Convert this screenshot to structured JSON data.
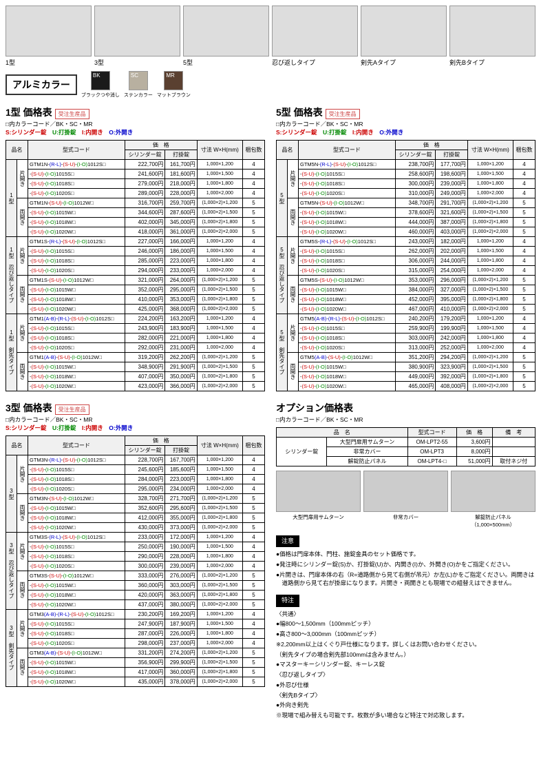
{
  "topImages": {
    "fences": [
      {
        "label": "1型"
      },
      {
        "label": "3型"
      },
      {
        "label": "5型"
      }
    ],
    "spikes": [
      {
        "label": "忍び返しタイプ"
      },
      {
        "label": "剣先Aタイプ"
      },
      {
        "label": "剣先Bタイプ"
      }
    ]
  },
  "colorSection": {
    "title": "アルミカラー",
    "swatches": [
      {
        "code": "BK",
        "name": "ブラックつや消し",
        "hex": "#1a1a1a"
      },
      {
        "code": "SC",
        "name": "ステンカラー",
        "hex": "#b8b0a0"
      },
      {
        "code": "MR",
        "name": "マットブラウン",
        "hex": "#5a4030"
      }
    ]
  },
  "legend": {
    "colorLine": "□内カラーコード／BK・SC・MR",
    "s": "S:シリンダー錠",
    "u": "U:打掛錠",
    "i": "I:内開き",
    "o": "O:外開き"
  },
  "headers": {
    "name": "品名",
    "model": "型式コード",
    "price": "価　格",
    "cyl": "シリンダー錠",
    "latch": "打掛錠",
    "size": "寸法 W×H(mm)",
    "qty": "梱包数"
  },
  "tables": {
    "t1": {
      "title": "1型 価格表",
      "badge": "受注生産品",
      "groups": [
        {
          "cat": "1型",
          "sub": "片開き",
          "rows": [
            {
              "m": "GTM1N-(R-L)-(S-U)-(I-O)1012S□",
              "p1": "222,700円",
              "p2": "161,700円",
              "s": "1,000×1,200",
              "q": "4"
            },
            {
              "m": "-(S-U)-(I-O)1015S□",
              "p1": "241,600円",
              "p2": "181,600円",
              "s": "1,000×1,500",
              "q": "4"
            },
            {
              "m": "-(S-U)-(I-O)1018S□",
              "p1": "279,000円",
              "p2": "218,000円",
              "s": "1,000×1,800",
              "q": "4"
            },
            {
              "m": "-(S-U)-(I-O)1020S□",
              "p1": "289,000円",
              "p2": "228,000円",
              "s": "1,000×2,000",
              "q": "4"
            }
          ]
        },
        {
          "cat": "",
          "sub": "両開き",
          "rows": [
            {
              "m": "GTM1N-(S-U)-(I-O)1012W□",
              "p1": "316,700円",
              "p2": "259,700円",
              "s": "(1,000×2)×1,200",
              "q": "5"
            },
            {
              "m": "-(S-U)-(I-O)1015W□",
              "p1": "344,600円",
              "p2": "287,600円",
              "s": "(1,000×2)×1,500",
              "q": "5"
            },
            {
              "m": "-(S-U)-(I-O)1018W□",
              "p1": "402,000円",
              "p2": "345,000円",
              "s": "(1,000×2)×1,800",
              "q": "5"
            },
            {
              "m": "-(S-U)-(I-O)1020W□",
              "p1": "418,000円",
              "p2": "361,000円",
              "s": "(1,000×2)×2,000",
              "q": "5"
            }
          ]
        },
        {
          "cat": "1型 忍び返しタイプ",
          "sub": "片開き",
          "rows": [
            {
              "m": "GTM1S-(R-L)-(S-U)-(I-O)1012S□",
              "p1": "227,000円",
              "p2": "166,000円",
              "s": "1,000×1,200",
              "q": "4"
            },
            {
              "m": "-(S-U)-(I-O)1015S□",
              "p1": "246,000円",
              "p2": "186,000円",
              "s": "1,000×1,500",
              "q": "4"
            },
            {
              "m": "-(S-U)-(I-O)1018S□",
              "p1": "285,000円",
              "p2": "223,000円",
              "s": "1,000×1,800",
              "q": "4"
            },
            {
              "m": "-(S-U)-(I-O)1020S□",
              "p1": "294,000円",
              "p2": "233,000円",
              "s": "1,000×2,000",
              "q": "4"
            }
          ]
        },
        {
          "cat": "",
          "sub": "両開き",
          "rows": [
            {
              "m": "GTM1S-(S-U)-(I-O)1012W□",
              "p1": "321,000円",
              "p2": "264,000円",
              "s": "(1,000×2)×1,200",
              "q": "5"
            },
            {
              "m": "-(S-U)-(I-O)1015W□",
              "p1": "352,000円",
              "p2": "295,000円",
              "s": "(1,000×2)×1,500",
              "q": "5"
            },
            {
              "m": "-(S-U)-(I-O)1018W□",
              "p1": "410,000円",
              "p2": "353,000円",
              "s": "(1,000×2)×1,800",
              "q": "5"
            },
            {
              "m": "-(S-U)-(I-O)1020W□",
              "p1": "425,000円",
              "p2": "368,000円",
              "s": "(1,000×2)×2,000",
              "q": "5"
            }
          ]
        },
        {
          "cat": "1型 剣先タイプ",
          "sub": "片開き",
          "rows": [
            {
              "m": "GTM1(A-B)-(R-L)-(S-U)-(I-O)1012S□",
              "p1": "224,200円",
              "p2": "163,200円",
              "s": "1,000×1,200",
              "q": "4"
            },
            {
              "m": "-(S-U)-(I-O)1015S□",
              "p1": "243,900円",
              "p2": "183,900円",
              "s": "1,000×1,500",
              "q": "4"
            },
            {
              "m": "-(S-U)-(I-O)1018S□",
              "p1": "282,000円",
              "p2": "221,000円",
              "s": "1,000×1,800",
              "q": "4"
            },
            {
              "m": "-(S-U)-(I-O)1020S□",
              "p1": "292,000円",
              "p2": "231,000円",
              "s": "1,000×2,000",
              "q": "4"
            }
          ]
        },
        {
          "cat": "",
          "sub": "両開き",
          "rows": [
            {
              "m": "GTM1(A-B)-(S-U)-(I-O)1012W□",
              "p1": "319,200円",
              "p2": "262,200円",
              "s": "(1,000×2)×1,200",
              "q": "5"
            },
            {
              "m": "-(S-U)-(I-O)1015W□",
              "p1": "348,900円",
              "p2": "291,900円",
              "s": "(1,000×2)×1,500",
              "q": "5"
            },
            {
              "m": "-(S-U)-(I-O)1018W□",
              "p1": "407,000円",
              "p2": "350,000円",
              "s": "(1,000×2)×1,800",
              "q": "5"
            },
            {
              "m": "-(S-U)-(I-O)1020W□",
              "p1": "423,000円",
              "p2": "366,000円",
              "s": "(1,000×2)×2,000",
              "q": "5"
            }
          ]
        }
      ]
    },
    "t5": {
      "title": "5型 価格表",
      "badge": "受注生産品",
      "groups": [
        {
          "cat": "5型",
          "sub": "片開き",
          "rows": [
            {
              "m": "GTM5N-(R-L)-(S-U)-(I-O)1012S□",
              "p1": "238,700円",
              "p2": "177,700円",
              "s": "1,000×1,200",
              "q": "4"
            },
            {
              "m": "-(S-U)-(I-O)1015S□",
              "p1": "258,600円",
              "p2": "198,600円",
              "s": "1,000×1,500",
              "q": "4"
            },
            {
              "m": "-(S-U)-(I-O)1018S□",
              "p1": "300,000円",
              "p2": "239,000円",
              "s": "1,000×1,800",
              "q": "4"
            },
            {
              "m": "-(S-U)-(I-O)1020S□",
              "p1": "310,000円",
              "p2": "249,000円",
              "s": "1,000×2,000",
              "q": "4"
            }
          ]
        },
        {
          "cat": "",
          "sub": "両開き",
          "rows": [
            {
              "m": "GTM5N-(S-U)-(I-O)1012W□",
              "p1": "348,700円",
              "p2": "291,700円",
              "s": "(1,000×2)×1,200",
              "q": "5"
            },
            {
              "m": "-(S-U)-(I-O)1015W□",
              "p1": "378,600円",
              "p2": "321,600円",
              "s": "(1,000×2)×1,500",
              "q": "5"
            },
            {
              "m": "-(S-U)-(I-O)1018W□",
              "p1": "444,000円",
              "p2": "387,000円",
              "s": "(1,000×2)×1,800",
              "q": "5"
            },
            {
              "m": "-(S-U)-(I-O)1020W□",
              "p1": "460,000円",
              "p2": "403,000円",
              "s": "(1,000×2)×2,000",
              "q": "5"
            }
          ]
        },
        {
          "cat": "5型 忍び返しタイプ",
          "sub": "片開き",
          "rows": [
            {
              "m": "GTM5S-(R-L)-(S-U)-(I-O)1012S□",
              "p1": "243,000円",
              "p2": "182,000円",
              "s": "1,000×1,200",
              "q": "4"
            },
            {
              "m": "-(S-U)-(I-O)1015S□",
              "p1": "262,000円",
              "p2": "202,000円",
              "s": "1,000×1,500",
              "q": "4"
            },
            {
              "m": "-(S-U)-(I-O)1018S□",
              "p1": "306,000円",
              "p2": "244,000円",
              "s": "1,000×1,800",
              "q": "4"
            },
            {
              "m": "-(S-U)-(I-O)1020S□",
              "p1": "315,000円",
              "p2": "254,000円",
              "s": "1,000×2,000",
              "q": "4"
            }
          ]
        },
        {
          "cat": "",
          "sub": "両開き",
          "rows": [
            {
              "m": "GTM5S-(S-U)-(I-O)1012W□",
              "p1": "353,000円",
              "p2": "296,000円",
              "s": "(1,000×2)×1,200",
              "q": "5"
            },
            {
              "m": "-(S-U)-(I-O)1015W□",
              "p1": "384,000円",
              "p2": "327,000円",
              "s": "(1,000×2)×1,500",
              "q": "5"
            },
            {
              "m": "-(S-U)-(I-O)1018W□",
              "p1": "452,000円",
              "p2": "395,000円",
              "s": "(1,000×2)×1,800",
              "q": "5"
            },
            {
              "m": "-(S-U)-(I-O)1020W□",
              "p1": "467,000円",
              "p2": "410,000円",
              "s": "(1,000×2)×2,000",
              "q": "5"
            }
          ]
        },
        {
          "cat": "5型 剣先タイプ",
          "sub": "片開き",
          "rows": [
            {
              "m": "GTM5(A-B)-(R-L)-(S-U)-(I-O)1012S□",
              "p1": "240,200円",
              "p2": "179,200円",
              "s": "1,000×1,200",
              "q": "4"
            },
            {
              "m": "-(S-U)-(I-O)1015S□",
              "p1": "259,900円",
              "p2": "199,900円",
              "s": "1,000×1,500",
              "q": "4"
            },
            {
              "m": "-(S-U)-(I-O)1018S□",
              "p1": "303,000円",
              "p2": "242,000円",
              "s": "1,000×1,800",
              "q": "4"
            },
            {
              "m": "-(S-U)-(I-O)1020S□",
              "p1": "313,000円",
              "p2": "252,000円",
              "s": "1,000×2,000",
              "q": "4"
            }
          ]
        },
        {
          "cat": "",
          "sub": "両開き",
          "rows": [
            {
              "m": "GTM5(A-B)-(S-U)-(I-O)1012W□",
              "p1": "351,200円",
              "p2": "294,200円",
              "s": "(1,000×2)×1,200",
              "q": "5"
            },
            {
              "m": "-(S-U)-(I-O)1015W□",
              "p1": "380,900円",
              "p2": "323,900円",
              "s": "(1,000×2)×1,500",
              "q": "5"
            },
            {
              "m": "-(S-U)-(I-O)1018W□",
              "p1": "449,000円",
              "p2": "392,000円",
              "s": "(1,000×2)×1,800",
              "q": "5"
            },
            {
              "m": "-(S-U)-(I-O)1020W□",
              "p1": "465,000円",
              "p2": "408,000円",
              "s": "(1,000×2)×2,000",
              "q": "5"
            }
          ]
        }
      ]
    },
    "t3": {
      "title": "3型 価格表",
      "badge": "受注生産品",
      "groups": [
        {
          "cat": "3型",
          "sub": "片開き",
          "rows": [
            {
              "m": "GTM3N-(R-L)-(S-U)-(I-O)1012S□",
              "p1": "228,700円",
              "p2": "167,700円",
              "s": "1,000×1,200",
              "q": "4"
            },
            {
              "m": "-(S-U)-(I-O)1015S□",
              "p1": "245,600円",
              "p2": "185,600円",
              "s": "1,000×1,500",
              "q": "4"
            },
            {
              "m": "-(S-U)-(I-O)1018S□",
              "p1": "284,000円",
              "p2": "223,000円",
              "s": "1,000×1,800",
              "q": "4"
            },
            {
              "m": "-(S-U)-(I-O)1020S□",
              "p1": "295,000円",
              "p2": "234,000円",
              "s": "1,000×2,000",
              "q": "4"
            }
          ]
        },
        {
          "cat": "",
          "sub": "両開き",
          "rows": [
            {
              "m": "GTM3N-(S-U)-(I-O)1012W□",
              "p1": "328,700円",
              "p2": "271,700円",
              "s": "(1,000×2)×1,200",
              "q": "5"
            },
            {
              "m": "-(S-U)-(I-O)1015W□",
              "p1": "352,600円",
              "p2": "295,600円",
              "s": "(1,000×2)×1,500",
              "q": "5"
            },
            {
              "m": "-(S-U)-(I-O)1018W□",
              "p1": "412,000円",
              "p2": "355,000円",
              "s": "(1,000×2)×1,800",
              "q": "5"
            },
            {
              "m": "-(S-U)-(I-O)1020W□",
              "p1": "430,000円",
              "p2": "373,000円",
              "s": "(1,000×2)×2,000",
              "q": "5"
            }
          ]
        },
        {
          "cat": "3型 忍び返しタイプ",
          "sub": "片開き",
          "rows": [
            {
              "m": "GTM3S-(R-L)-(S-U)-(I-O)1012S□",
              "p1": "233,000円",
              "p2": "172,000円",
              "s": "1,000×1,200",
              "q": "4"
            },
            {
              "m": "-(S-U)-(I-O)1015S□",
              "p1": "250,000円",
              "p2": "190,000円",
              "s": "1,000×1,500",
              "q": "4"
            },
            {
              "m": "-(S-U)-(I-O)1018S□",
              "p1": "290,000円",
              "p2": "228,000円",
              "s": "1,000×1,800",
              "q": "4"
            },
            {
              "m": "-(S-U)-(I-O)1020S□",
              "p1": "300,000円",
              "p2": "239,000円",
              "s": "1,000×2,000",
              "q": "4"
            }
          ]
        },
        {
          "cat": "",
          "sub": "両開き",
          "rows": [
            {
              "m": "GTM3S-(S-U)-(I-O)1012W□",
              "p1": "333,000円",
              "p2": "276,000円",
              "s": "(1,000×2)×1,200",
              "q": "5"
            },
            {
              "m": "-(S-U)-(I-O)1015W□",
              "p1": "360,000円",
              "p2": "303,000円",
              "s": "(1,000×2)×1,500",
              "q": "5"
            },
            {
              "m": "-(S-U)-(I-O)1018W□",
              "p1": "420,000円",
              "p2": "363,000円",
              "s": "(1,000×2)×1,800",
              "q": "5"
            },
            {
              "m": "-(S-U)-(I-O)1020W□",
              "p1": "437,000円",
              "p2": "380,000円",
              "s": "(1,000×2)×2,000",
              "q": "5"
            }
          ]
        },
        {
          "cat": "3型 剣先タイプ",
          "sub": "片開き",
          "rows": [
            {
              "m": "GTM3(A-B)-(R-L)-(S-U)-(I-O)1012S□",
              "p1": "230,200円",
              "p2": "169,200円",
              "s": "1,000×1,200",
              "q": "4"
            },
            {
              "m": "-(S-U)-(I-O)1015S□",
              "p1": "247,900円",
              "p2": "187,900円",
              "s": "1,000×1,500",
              "q": "4"
            },
            {
              "m": "-(S-U)-(I-O)1018S□",
              "p1": "287,000円",
              "p2": "226,000円",
              "s": "1,000×1,800",
              "q": "4"
            },
            {
              "m": "-(S-U)-(I-O)1020S□",
              "p1": "298,000円",
              "p2": "237,000円",
              "s": "1,000×2,000",
              "q": "4"
            }
          ]
        },
        {
          "cat": "",
          "sub": "両開き",
          "rows": [
            {
              "m": "GTM3(A-B)-(S-U)-(I-O)1012W□",
              "p1": "331,200円",
              "p2": "274,200円",
              "s": "(1,000×2)×1,200",
              "q": "5"
            },
            {
              "m": "-(S-U)-(I-O)1015W□",
              "p1": "356,900円",
              "p2": "299,900円",
              "s": "(1,000×2)×1,500",
              "q": "5"
            },
            {
              "m": "-(S-U)-(I-O)1018W□",
              "p1": "417,000円",
              "p2": "360,000円",
              "s": "(1,000×2)×1,800",
              "q": "5"
            },
            {
              "m": "-(S-U)-(I-O)1020W□",
              "p1": "435,000円",
              "p2": "378,000円",
              "s": "(1,000×2)×2,000",
              "q": "5"
            }
          ]
        }
      ]
    }
  },
  "options": {
    "title": "オプション価格表",
    "colorLine": "□内カラーコード／BK・SC・MR",
    "headers": {
      "name": "品　名",
      "model": "型式コード",
      "price": "価　格",
      "remark": "備　考"
    },
    "catLabel": "シリンダー錠",
    "rows": [
      {
        "n": "大型門扉用サムターン",
        "m": "OM-LPT2-55",
        "p": "3,600円",
        "r": ""
      },
      {
        "n": "非常カバー",
        "m": "OM-LPT3",
        "p": "8,000円",
        "r": ""
      },
      {
        "n": "解錠防止パネル",
        "m": "OM-LPT4-□",
        "p": "51,000円",
        "r": "取付ネジ付"
      }
    ],
    "images": [
      {
        "label": "大型門扉用サムターン"
      },
      {
        "label": "非常カバー"
      },
      {
        "label": "解錠防止パネル\n（1,000×500mm）"
      }
    ]
  },
  "notes": {
    "cautionTitle": "注意",
    "cautions": [
      "●価格は門扉本体、門柱、施錠金具のセット価格です。",
      "●発注時にシリンダー錠(S)か、打掛錠(U)か、内開き(I)か、外開き(O)かをご指定ください。",
      "●片開きは、門扉本体の右（R=道路側から見て右側が吊元）か左(L)かをご指定ください。両開きは道路側から見て右が掛扉になります。片開き・両開きとも現場での組替えはできません。"
    ],
    "featureTitle": "特注",
    "features": [
      "〈共通〉",
      "●幅800〜1,500mm（100mmピッチ）",
      "●高さ800〜3,000mm（100mmピッチ）",
      "※2,200mm以上はくぐり戸仕様になります。詳しくはお問い合わせください。",
      "（剣先タイプの場合剣先部100mmは含みません。）",
      "●マスターキーシリンダー錠、キーレス錠",
      "〈忍び返しタイプ〉",
      "●外忍び仕様",
      "〈剣先Bタイプ〉",
      "●外向き剣先",
      "※現場で組み替えも可能です。枚数が多い場合など特注で対応致します。"
    ]
  }
}
